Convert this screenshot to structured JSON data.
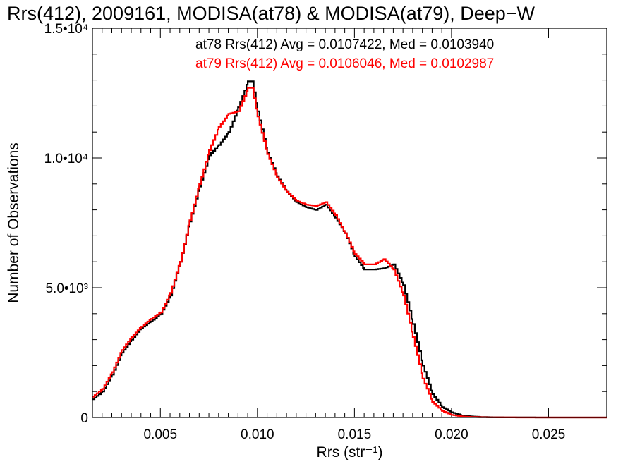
{
  "chart_data": {
    "type": "line",
    "title": "Rrs(412), 2009161, MODISA(at78) & MODISA(at79), Deep−W",
    "xlabel": "Rrs (str⁻¹)",
    "ylabel": "Number of Observations",
    "xlim": [
      0.0015,
      0.028
    ],
    "ylim": [
      0,
      15000
    ],
    "x_ticks": [
      {
        "value": 0.005,
        "label": "0.005"
      },
      {
        "value": 0.01,
        "label": "0.010"
      },
      {
        "value": 0.015,
        "label": "0.015"
      },
      {
        "value": 0.02,
        "label": "0.020"
      },
      {
        "value": 0.025,
        "label": "0.025"
      }
    ],
    "y_ticks": [
      {
        "value": 0,
        "label": "0"
      },
      {
        "value": 5000,
        "label": "5.0•10³"
      },
      {
        "value": 10000,
        "label": "1.0•10⁴"
      },
      {
        "value": 15000,
        "label": "1.5•10⁴"
      }
    ],
    "annotations": [
      {
        "text": "at78 Rrs(412) Avg = 0.0107422, Med = 0.0103940",
        "color": "#000000"
      },
      {
        "text": "at79 Rrs(412) Avg = 0.0106046, Med = 0.0102987",
        "color": "#ff0000"
      }
    ],
    "series": [
      {
        "color": "#000000",
        "x": [
          0.0015,
          0.002,
          0.0025,
          0.003,
          0.0035,
          0.004,
          0.0045,
          0.005,
          0.0055,
          0.006,
          0.0065,
          0.007,
          0.0075,
          0.008,
          0.0085,
          0.009,
          0.0095,
          0.0097,
          0.01,
          0.0105,
          0.011,
          0.0115,
          0.012,
          0.0125,
          0.013,
          0.0135,
          0.014,
          0.0145,
          0.015,
          0.0155,
          0.016,
          0.0165,
          0.017,
          0.0175,
          0.018,
          0.0185,
          0.019,
          0.0195,
          0.02,
          0.0205,
          0.021,
          0.0215,
          0.022,
          0.023,
          0.024,
          0.025,
          0.026,
          0.027,
          0.028
        ],
        "y": [
          700,
          1000,
          1650,
          2500,
          3000,
          3450,
          3700,
          4000,
          4700,
          6000,
          7550,
          8900,
          10100,
          10500,
          11000,
          11950,
          12950,
          12950,
          11800,
          10200,
          9300,
          8700,
          8300,
          8100,
          8000,
          8200,
          7700,
          7100,
          6200,
          5700,
          5700,
          5750,
          5900,
          5100,
          3600,
          2000,
          900,
          400,
          200,
          80,
          40,
          20,
          10,
          5,
          2,
          0,
          0,
          0,
          0
        ]
      },
      {
        "color": "#ff0000",
        "x": [
          0.0015,
          0.002,
          0.0025,
          0.003,
          0.0035,
          0.004,
          0.0045,
          0.005,
          0.0055,
          0.006,
          0.0065,
          0.007,
          0.0075,
          0.008,
          0.0085,
          0.009,
          0.0095,
          0.0097,
          0.01,
          0.0105,
          0.011,
          0.0115,
          0.012,
          0.0125,
          0.013,
          0.0135,
          0.014,
          0.0145,
          0.015,
          0.0155,
          0.016,
          0.0165,
          0.017,
          0.0175,
          0.018,
          0.0185,
          0.019,
          0.0195,
          0.02,
          0.0205,
          0.021,
          0.0215,
          0.022,
          0.023,
          0.024,
          0.025,
          0.026,
          0.027,
          0.028
        ],
        "y": [
          800,
          1100,
          1750,
          2600,
          3100,
          3500,
          3800,
          4050,
          4800,
          6000,
          7600,
          9000,
          10300,
          11200,
          11700,
          11800,
          12700,
          12700,
          11600,
          10150,
          9250,
          8700,
          8350,
          8200,
          8150,
          8300,
          7800,
          7100,
          6300,
          5900,
          5900,
          6100,
          5700,
          4700,
          3100,
          1500,
          600,
          250,
          100,
          40,
          20,
          10,
          5,
          2,
          0,
          0,
          0,
          0,
          0
        ]
      }
    ],
    "grid": false
  }
}
